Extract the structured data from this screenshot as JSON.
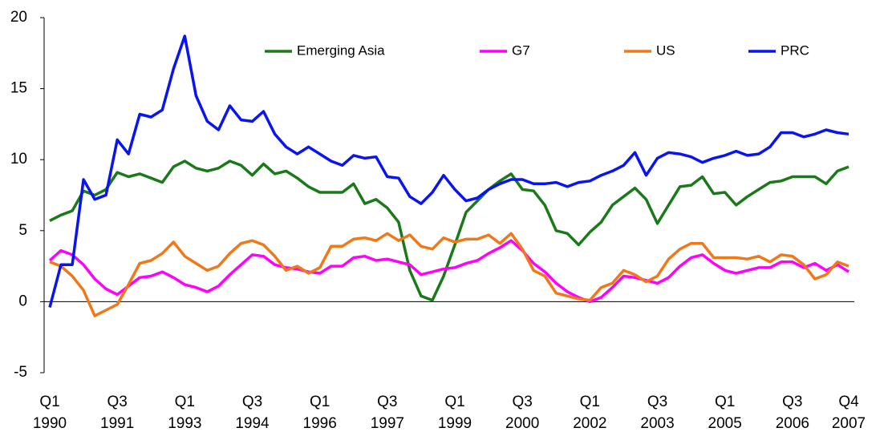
{
  "chart_data": {
    "type": "line",
    "categories": [
      "Q1\n1990",
      null,
      null,
      null,
      null,
      null,
      "Q3\n1991",
      null,
      null,
      null,
      null,
      null,
      "Q1\n1993",
      null,
      null,
      null,
      null,
      null,
      "Q3\n1994",
      null,
      null,
      null,
      null,
      null,
      "Q1\n1996",
      null,
      null,
      null,
      null,
      null,
      "Q3\n1997",
      null,
      null,
      null,
      null,
      null,
      "Q1\n1999",
      null,
      null,
      null,
      null,
      null,
      "Q3\n2000",
      null,
      null,
      null,
      null,
      null,
      "Q1\n2002",
      null,
      null,
      null,
      null,
      null,
      "Q3\n2003",
      null,
      null,
      null,
      null,
      null,
      "Q1\n2005",
      null,
      null,
      null,
      null,
      null,
      "Q3\n2006",
      null,
      null,
      null,
      null,
      "Q4\n2007"
    ],
    "series": [
      {
        "name": "Emerging Asia",
        "color": "#1a7a1a",
        "values": [
          5.7,
          6.1,
          6.4,
          7.8,
          7.5,
          7.9,
          9.1,
          8.8,
          9.0,
          8.7,
          8.4,
          9.5,
          9.9,
          9.4,
          9.2,
          9.4,
          9.9,
          9.6,
          8.9,
          9.7,
          9.0,
          9.2,
          8.7,
          8.1,
          7.7,
          7.7,
          7.7,
          8.3,
          6.9,
          7.2,
          6.6,
          5.6,
          2.2,
          0.4,
          0.1,
          1.8,
          4.0,
          6.3,
          7.1,
          7.9,
          8.5,
          9.0,
          7.9,
          7.8,
          6.8,
          5.0,
          4.8,
          4.0,
          4.9,
          5.6,
          6.8,
          7.4,
          8.0,
          7.2,
          5.5,
          6.8,
          8.1,
          8.2,
          8.8,
          7.6,
          7.7,
          6.8,
          7.4,
          7.9,
          8.4,
          8.5,
          8.8,
          8.8,
          8.8,
          8.3,
          9.2,
          9.5
        ]
      },
      {
        "name": "G7",
        "color": "#ff00ff",
        "values": [
          2.9,
          3.6,
          3.3,
          2.6,
          1.6,
          0.9,
          0.5,
          1.1,
          1.7,
          1.8,
          2.1,
          1.7,
          1.2,
          1.0,
          0.7,
          1.1,
          1.9,
          2.6,
          3.3,
          3.2,
          2.6,
          2.4,
          2.3,
          2.1,
          2.0,
          2.5,
          2.5,
          3.1,
          3.2,
          2.9,
          3.0,
          2.8,
          2.6,
          1.9,
          2.1,
          2.3,
          2.4,
          2.7,
          2.9,
          3.4,
          3.8,
          4.3,
          3.6,
          2.7,
          2.1,
          1.3,
          0.7,
          0.3,
          0.0,
          0.3,
          1.0,
          1.8,
          1.7,
          1.5,
          1.3,
          1.7,
          2.5,
          3.1,
          3.3,
          2.7,
          2.2,
          2.0,
          2.2,
          2.4,
          2.4,
          2.8,
          2.8,
          2.4,
          2.7,
          2.2,
          2.6,
          2.1
        ]
      },
      {
        "name": "US",
        "color": "#f07818",
        "values": [
          2.8,
          2.5,
          1.8,
          0.8,
          -1.0,
          -0.6,
          -0.2,
          1.2,
          2.7,
          2.9,
          3.4,
          4.2,
          3.2,
          2.7,
          2.2,
          2.5,
          3.4,
          4.1,
          4.3,
          4.0,
          3.2,
          2.2,
          2.5,
          2.0,
          2.4,
          3.9,
          3.9,
          4.4,
          4.5,
          4.3,
          4.8,
          4.3,
          4.7,
          3.9,
          3.7,
          4.5,
          4.2,
          4.4,
          4.4,
          4.7,
          4.1,
          4.8,
          3.7,
          2.2,
          1.8,
          0.6,
          0.4,
          0.2,
          0.1,
          1.0,
          1.3,
          2.2,
          1.9,
          1.4,
          1.8,
          3.0,
          3.7,
          4.1,
          4.1,
          3.1,
          3.1,
          3.1,
          3.0,
          3.2,
          2.8,
          3.3,
          3.2,
          2.6,
          1.6,
          1.9,
          2.8,
          2.5
        ]
      },
      {
        "name": "PRC",
        "color": "#0a14f0",
        "values": [
          -0.4,
          2.6,
          2.6,
          8.6,
          7.2,
          7.5,
          11.4,
          10.4,
          13.2,
          13.0,
          13.5,
          16.4,
          18.7,
          14.5,
          12.7,
          12.1,
          13.8,
          12.8,
          12.7,
          13.4,
          11.8,
          10.9,
          10.4,
          10.9,
          10.4,
          9.9,
          9.6,
          10.3,
          10.1,
          10.2,
          8.8,
          8.7,
          7.4,
          6.9,
          7.7,
          8.9,
          7.9,
          7.1,
          7.3,
          7.9,
          8.3,
          8.6,
          8.6,
          8.3,
          8.3,
          8.4,
          8.1,
          8.4,
          8.5,
          8.9,
          9.2,
          9.6,
          10.5,
          8.9,
          10.1,
          10.5,
          10.4,
          10.2,
          9.8,
          10.1,
          10.3,
          10.6,
          10.3,
          10.4,
          10.9,
          11.9,
          11.9,
          11.6,
          11.8,
          12.1,
          11.9,
          11.8
        ]
      }
    ],
    "ylim": [
      -5,
      20
    ],
    "yticks": [
      -5,
      0,
      5,
      10,
      15,
      20
    ],
    "grid": false,
    "legend": "top"
  }
}
